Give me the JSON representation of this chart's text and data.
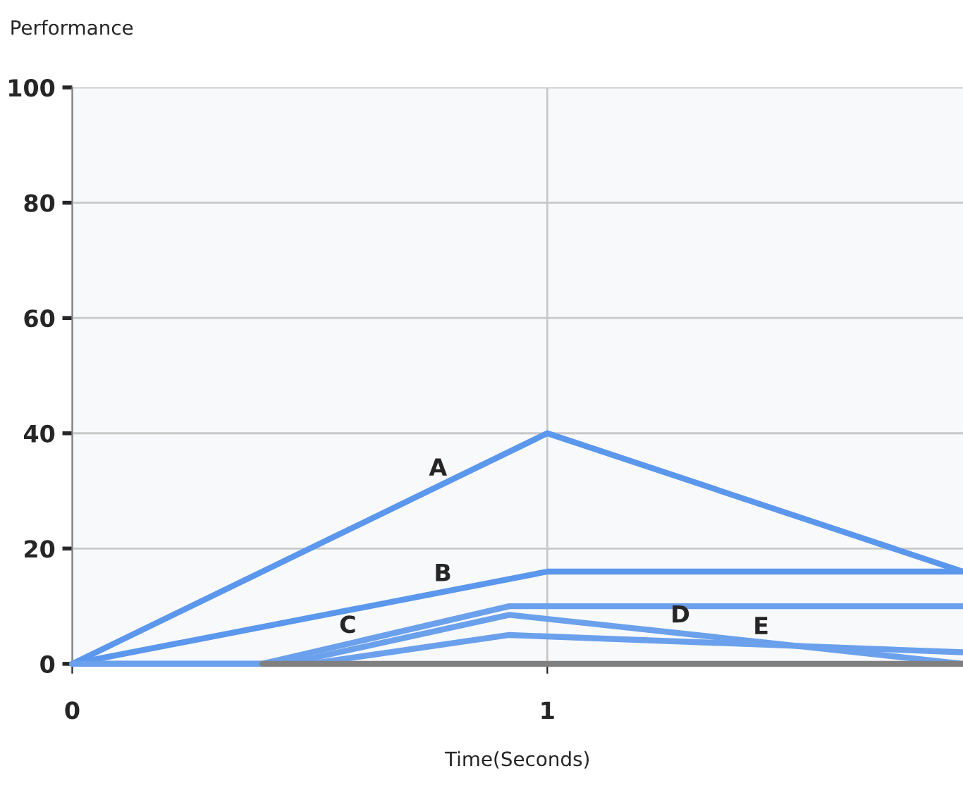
{
  "chart_data": {
    "type": "line",
    "xlabel": "Time(Seconds)",
    "ylabel": "Performance",
    "xlim": [
      0,
      1.875
    ],
    "xticks": [
      0,
      1
    ],
    "ylim": [
      0,
      100
    ],
    "yticks": [
      0,
      20,
      40,
      60,
      80,
      100
    ],
    "grid": true,
    "marker": "none",
    "line_style": "solid",
    "series": [
      {
        "color": "#5b97ec",
        "x": [
          0,
          1,
          1.875
        ],
        "values": [
          0,
          40,
          16
        ]
      },
      {
        "color": "#5b97ec",
        "x": [
          0,
          1,
          1.875
        ],
        "values": [
          0,
          16,
          16
        ]
      },
      {
        "color": "#6aa0ec",
        "x": [
          0,
          0.4,
          0.92,
          1.875
        ],
        "values": [
          0,
          0,
          10,
          10
        ]
      },
      {
        "color": "#6aa0ec",
        "x": [
          0,
          0.45,
          0.92,
          1.875
        ],
        "values": [
          0,
          0,
          8.5,
          0
        ]
      },
      {
        "color": "#6aa0ec",
        "x": [
          0,
          0.5,
          0.92,
          1.875
        ],
        "values": [
          0,
          0,
          5,
          2
        ]
      },
      {
        "color": "#808080",
        "x": [
          0.4,
          1.875
        ],
        "values": [
          0,
          0
        ]
      }
    ],
    "annotations": [
      {
        "text": "A",
        "x": 0.77,
        "y": 30.8
      },
      {
        "text": "B",
        "x": 0.78,
        "y": 12.5
      },
      {
        "text": "C",
        "x": 0.58,
        "y": 3.5
      },
      {
        "text": "D",
        "x": 1.28,
        "y": 5.3
      },
      {
        "text": "E",
        "x": 1.45,
        "y": 3.3
      }
    ]
  }
}
